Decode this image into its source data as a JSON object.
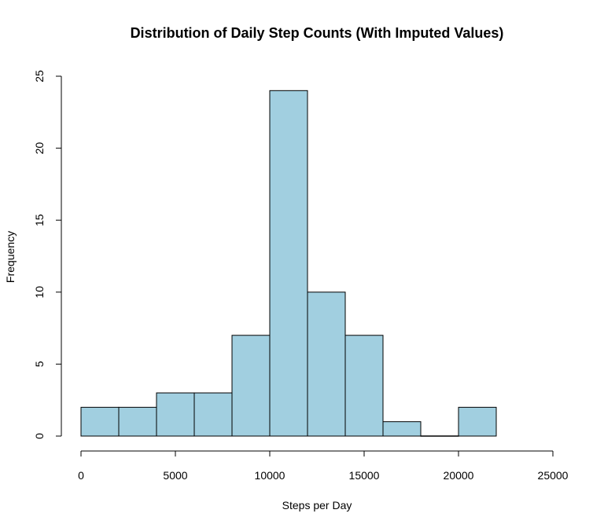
{
  "chart_data": {
    "type": "bar",
    "title": "Distribution of Daily Step Counts (With Imputed Values)",
    "xlabel": "Steps per Day",
    "ylabel": "Frequency",
    "bin_edges": [
      0,
      2000,
      4000,
      6000,
      8000,
      10000,
      12000,
      14000,
      16000,
      18000,
      20000,
      22000
    ],
    "values": [
      2,
      2,
      3,
      3,
      7,
      24,
      10,
      7,
      1,
      0,
      2
    ],
    "xlim": [
      0,
      25000
    ],
    "ylim": [
      0,
      25
    ],
    "x_ticks": [
      0,
      5000,
      10000,
      15000,
      20000,
      25000
    ],
    "y_ticks": [
      0,
      5,
      10,
      15,
      20,
      25
    ],
    "bar_color": "#A1CFE0",
    "grid": false,
    "legend": "none"
  }
}
